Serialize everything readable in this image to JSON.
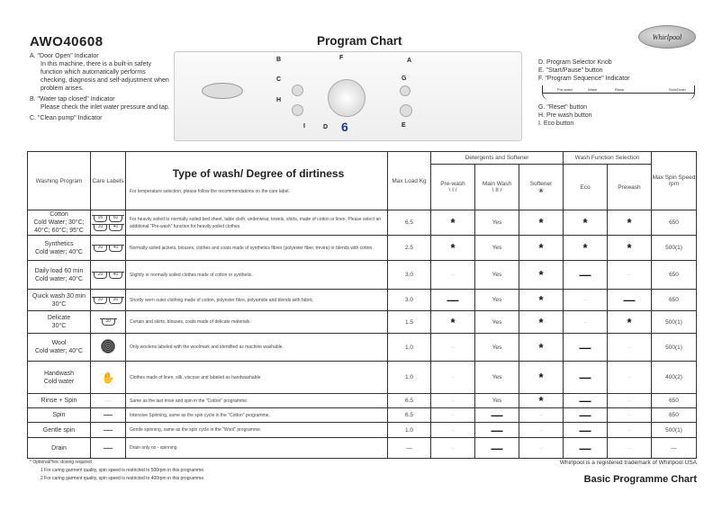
{
  "model": "AWO40608",
  "title": "Program Chart",
  "brand": "Whirlpool",
  "left_notes": [
    {
      "label": "A.  \"Door Open\" Indicator",
      "detail": "In this machine, there is a built-in safety function which automatically performs checking, diagnosis and self-adjustment when problem arises."
    },
    {
      "label": "B.  \"Water tap closed\" Indicator",
      "detail": "Please check the inlet water pressure and tap."
    },
    {
      "label": "C.  \"Clean pump\" Indicator",
      "detail": ""
    }
  ],
  "right_notes": [
    "D.  Program Selector Knob",
    "E.  \"Start/Pause\" button",
    "F.  \"Program Sequence\" Indicator",
    "G.  \"Reset\" button",
    "H.  Pre wash button",
    "I.   Eco button"
  ],
  "sequence": [
    "Pre-wash",
    "Wash",
    "Rinse",
    "",
    "Spin/Drain"
  ],
  "panel_letters": [
    "A",
    "B",
    "C",
    "D",
    "E",
    "F",
    "G",
    "H",
    "I"
  ],
  "table": {
    "headers": {
      "program": "Washing Program",
      "care": "Care Labels",
      "type": "Type of wash/ Degree of dirtiness",
      "type_note": "For temperature selection, please follow the recommendations on the care label.",
      "load": "Max Load Kg",
      "detergents": "Detergents and Softener",
      "prewash_det": "Pre-wash",
      "prewash_sym": "\\ I /",
      "main": "Main Wash",
      "main_sym": "\\ II /",
      "softener": "Softener",
      "softener_sym": "❀",
      "wash_fn": "Wash Function Selection",
      "eco": "Eco",
      "prewash": "Prewash",
      "spin": "Max Spin Speed rpm"
    },
    "rows": [
      {
        "program": "Cotton",
        "sub": "Cold Water; 30°C; 40°C; 60°C; 95°C",
        "care": [
          "95",
          "60",
          "30",
          "40"
        ],
        "desc": "For heavily soiled to normally soiled bed sheet, table cloth, underwear, towels, shirts, made of cotton or linen. Please select an additional \"Pre-wash\" function for heavily soiled clothes",
        "load": "6.5",
        "cells": [
          "*",
          "Yes",
          "*",
          "*",
          "*"
        ],
        "spin": "650"
      },
      {
        "program": "Synthetics",
        "sub": "Cold water; 40°C",
        "care": [
          "30",
          "40"
        ],
        "desc": "Normally soiled jackets, blouses, clothes and coats made of synthetics fibres (polyester fiber, trevira) or blends with cotton.",
        "load": "2.5",
        "cells": [
          "*",
          "Yes",
          "*",
          "*",
          "*"
        ],
        "spin": "500(1)"
      },
      {
        "program": "Daily load 60 min",
        "sub": "Cold water; 40°C",
        "care": [
          "20",
          "40"
        ],
        "desc": "Slightly or normally soiled clothes made of cotton or synthetic.",
        "load": "3.0",
        "cells": [
          "",
          "Yes",
          "*",
          "—",
          ""
        ],
        "spin": "650"
      },
      {
        "program": "Quick wash 30 min",
        "sub": "30°C",
        "care": [
          "30",
          "30"
        ],
        "desc": "Shortly worn outer clothing made of cotton, polyester fibre, polyamide and blends with fabric.",
        "load": "3.0",
        "cells": [
          "—",
          "Yes",
          "*",
          "",
          "—"
        ],
        "spin": "650"
      },
      {
        "program": "Delicate",
        "sub": "30°C",
        "care": [
          "30"
        ],
        "desc": "Curtain and skirts, blouses, coats made of delicate materials.",
        "load": "1.5",
        "cells": [
          "*",
          "Yes",
          "*",
          "",
          "*"
        ],
        "spin": "500(1)"
      },
      {
        "program": "Wool",
        "sub": "Cold water; 40°C",
        "care": [
          "woolmark"
        ],
        "desc": "Only woolens labeled with the woolmark and identified as machine washable.",
        "load": "1.0",
        "cells": [
          "",
          "Yes",
          "*",
          "—",
          ""
        ],
        "spin": "500(1)"
      },
      {
        "program": "Handwash",
        "sub": "Cold water",
        "care": [
          "handwash"
        ],
        "desc": "Clothes made of linen, silk, viscose and labeled as handwashable",
        "load": "1.0",
        "cells": [
          "",
          "Yes",
          "*",
          "—",
          ""
        ],
        "spin": "400(2)"
      },
      {
        "program": "Rinse + Spin",
        "sub": "",
        "care": [
          "none-faint"
        ],
        "desc": "Same as the last rinse and spin in the \"Cotton\" programme.",
        "load": "6.5",
        "cells": [
          "",
          "Yes",
          "*",
          "—",
          ""
        ],
        "spin": "650"
      },
      {
        "program": "Spin",
        "sub": "",
        "care": [
          "none"
        ],
        "desc": "Intensive Spinning, same as the spin cycle in the \"Cotton\" programme.",
        "load": "6.5",
        "cells": [
          "",
          "—",
          "",
          "—",
          ""
        ],
        "spin": "650"
      },
      {
        "program": "Gentle spin",
        "sub": "",
        "care": [
          "none"
        ],
        "desc": "Gentle spinning, same as the spin cycle in the \"Wool\" programme.",
        "load": "1.0",
        "cells": [
          "",
          "—",
          "",
          "—",
          ""
        ],
        "spin": "500(1)"
      },
      {
        "program": "Drain",
        "sub": "",
        "care": [
          "none"
        ],
        "desc": "Drain only no - spinning",
        "load": "—",
        "cells": [
          "",
          "—",
          "",
          "—",
          ""
        ],
        "spin": "—"
      }
    ]
  },
  "footnotes": [
    "* Optional/Yes: dosing required",
    "1   For caring garment quality, spin speed is restricted to 500rpm in this programme.",
    "2   For caring garment quality, spin speed is restricted to 400rpm in this programme."
  ],
  "trademark": "Whirlpool is a registered trademark of Whirlpool USA",
  "bottom_title": "Basic Programme Chart"
}
